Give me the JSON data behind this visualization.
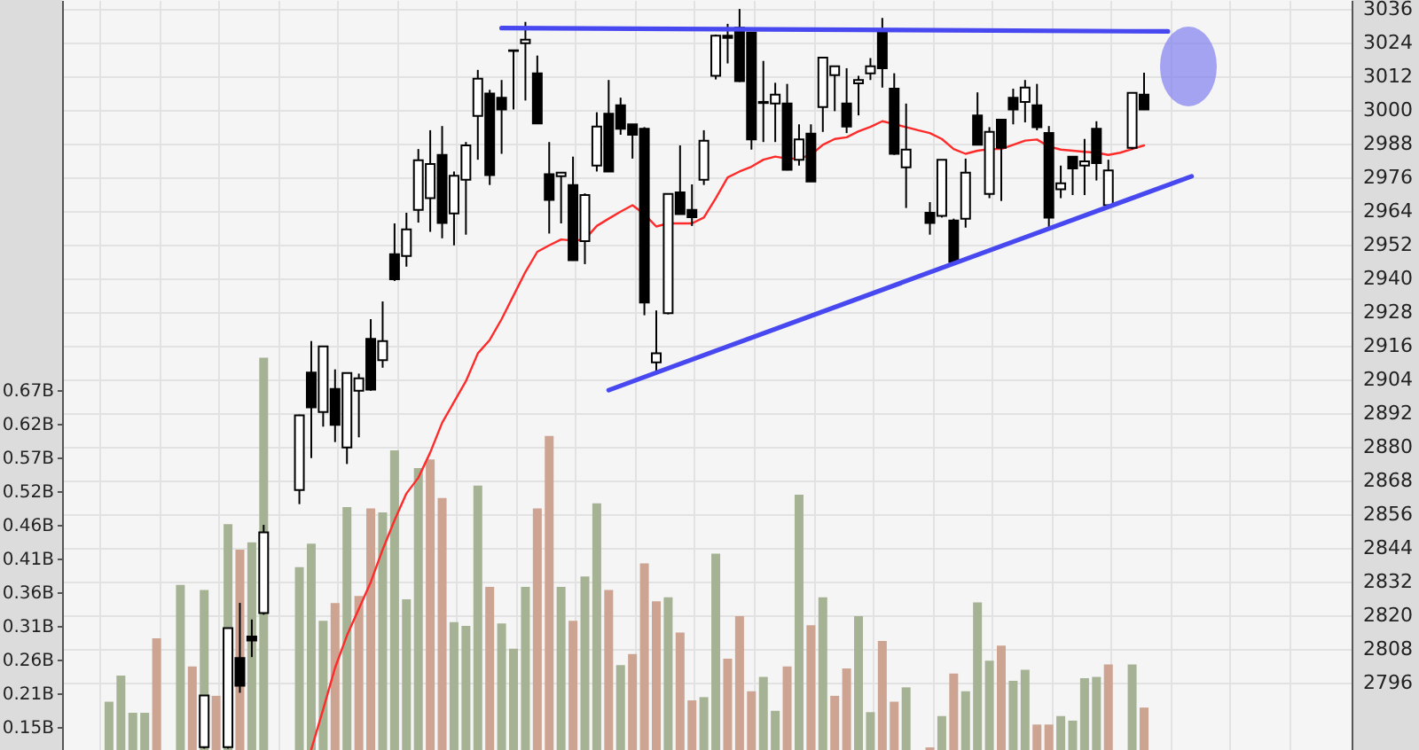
{
  "chart_data": {
    "type": "candlestick",
    "categories": [
      null,
      null,
      null,
      null,
      null,
      null,
      null,
      null,
      null,
      null,
      null,
      null,
      null,
      null,
      null,
      null,
      null,
      null,
      null,
      null,
      null,
      null,
      null,
      null,
      null,
      null,
      null,
      null,
      null,
      null,
      null,
      null,
      null,
      null,
      null,
      null,
      null,
      null,
      null,
      null,
      null,
      null,
      null,
      null,
      null,
      null,
      null,
      null,
      null,
      null,
      null,
      null,
      null,
      null,
      null,
      null,
      null,
      null,
      null,
      null,
      null,
      null,
      null,
      null,
      null,
      null,
      null,
      null,
      null,
      null,
      null,
      null,
      null,
      null,
      null,
      null,
      null,
      null,
      null,
      null,
      null,
      null,
      null,
      null,
      null,
      null,
      null,
      null,
      null,
      null,
      null,
      null
    ],
    "ohlc": [
      null,
      null,
      null,
      null,
      null,
      null,
      null,
      null,
      [
        2773,
        2791.4,
        2772.5,
        2791.4
      ],
      null,
      [
        2773,
        2815.4,
        2772.5,
        2815.4
      ],
      [
        2804.8,
        2824.4,
        2792.4,
        2794.9
      ],
      [
        2812.4,
        2818.5,
        2805.1,
        2811.0
      ],
      [
        2820.8,
        2852.2,
        2820.2,
        2849.5
      ],
      null,
      null,
      [
        2864.6,
        2891.5,
        2859.6,
        2891.2
      ],
      [
        2906.5,
        2917.7,
        2876.0,
        2894.1
      ],
      [
        2892.4,
        2916.0,
        2887.2,
        2915.8
      ],
      [
        2900.6,
        2907.6,
        2881.7,
        2887.8
      ],
      [
        2879.8,
        2906.5,
        2873.9,
        2906.3
      ],
      [
        2900.0,
        2906.1,
        2883.4,
        2904.4
      ],
      [
        2918.5,
        2925.5,
        2900.0,
        2900.4
      ],
      [
        2910.9,
        2931.8,
        2908.2,
        2917.7
      ],
      [
        2948.6,
        2959.6,
        2939.1,
        2939.7
      ],
      [
        2948.0,
        2963.4,
        2944.2,
        2957.5
      ],
      [
        2964.4,
        2986.1,
        2959.9,
        2982.1
      ],
      [
        2968.6,
        2992.8,
        2956.6,
        2980.8
      ],
      [
        2984.0,
        2994.3,
        2954.3,
        2959.8
      ],
      [
        2963.2,
        2978.1,
        2951.8,
        2976.6
      ],
      [
        2975.2,
        2988.6,
        2955.6,
        2987.4
      ],
      [
        2997.9,
        3014.3,
        2982.3,
        3011.2
      ],
      [
        3005.9,
        3007.2,
        2973.3,
        2976.8
      ],
      [
        3004.4,
        3010.7,
        2984.4,
        3000.2
      ],
      [
        3021.3,
        3021.3,
        3000.2,
        3021.0
      ],
      [
        3023.8,
        3031.4,
        3003.4,
        3025.1
      ],
      [
        3013.1,
        3019.4,
        2995.0,
        2995.2
      ],
      [
        2977.1,
        2988.6,
        2956.0,
        2968.0
      ],
      [
        2976.4,
        2977.7,
        2959.6,
        2977.7
      ],
      [
        2973.3,
        2983.4,
        2946.3,
        2946.5
      ],
      [
        2953.3,
        2970.3,
        2945.1,
        2969.7
      ],
      [
        2980.2,
        2999.2,
        2978.1,
        2994.1
      ],
      [
        2998.7,
        3010.7,
        2978.0,
        2978.1
      ],
      [
        3001.7,
        3004.4,
        2991.2,
        2993.3
      ],
      [
        2994.9,
        2994.9,
        2982.7,
        2991.2
      ],
      [
        2993.3,
        2993.9,
        2926.9,
        2931.4
      ],
      [
        2910.1,
        2928.6,
        2906.9,
        2913.3
      ],
      [
        2927.6,
        2970.1,
        2927.2,
        2970.1
      ],
      [
        2970.7,
        2987.4,
        2962.9,
        2962.9
      ],
      [
        2964.4,
        2973.5,
        2958.7,
        2961.8
      ],
      [
        2975.2,
        2992.8,
        2973.3,
        2989.1
      ],
      [
        3012.2,
        3026.9,
        3010.9,
        3026.5
      ],
      [
        3026.5,
        3030.7,
        3016.6,
        3025.7
      ],
      [
        3029.3,
        3036.0,
        3010.0,
        3010.3
      ],
      [
        3027.6,
        3027.6,
        2985.9,
        2989.5
      ],
      [
        3002.9,
        3017.5,
        2988.6,
        3002.5
      ],
      [
        3002.3,
        3009.7,
        2988.6,
        3005.5
      ],
      [
        3002.3,
        3009.3,
        2978.5,
        2978.7
      ],
      [
        2982.3,
        2994.9,
        2980.2,
        2989.5
      ],
      [
        2991.6,
        2994.9,
        2974.5,
        2974.5
      ],
      [
        3001.1,
        3018.7,
        2992.2,
        3018.7
      ],
      [
        3012.4,
        3015.6,
        2999.6,
        3015.6
      ],
      [
        3002.3,
        3014.9,
        2991.8,
        2994.1
      ],
      [
        3009.5,
        3012.2,
        2998.1,
        3010.7
      ],
      [
        3013.1,
        3018.5,
        3010.7,
        3015.6
      ],
      [
        3027.6,
        3032.8,
        3008.0,
        3014.9
      ],
      [
        3007.6,
        3013.1,
        2984.0,
        2984.4
      ],
      [
        2979.6,
        3002.3,
        2965.1,
        2985.9
      ],
      null,
      [
        2963.4,
        2967.2,
        2955.6,
        2959.8
      ],
      [
        2962.3,
        2982.3,
        2961.7,
        2982.3
      ],
      [
        2960.6,
        2961.3,
        2945.5,
        2945.9
      ],
      [
        2961.3,
        2982.7,
        2958.1,
        2977.7
      ],
      [
        2998.1,
        3006.3,
        2987.5,
        2987.6
      ],
      [
        2970.1,
        2993.9,
        2968.6,
        2992.2
      ],
      [
        2996.6,
        2996.6,
        2967.6,
        2986.5
      ],
      [
        3004.4,
        3007.6,
        2994.9,
        3000.2
      ],
      [
        3002.9,
        3010.7,
        2995.6,
        3008.0
      ],
      [
        3001.7,
        3009.3,
        2992.8,
        2993.9
      ],
      [
        2991.8,
        2994.3,
        2958.1,
        2961.7
      ],
      [
        2971.8,
        2980.2,
        2968.6,
        2973.9
      ],
      [
        2983.4,
        2983.4,
        2969.7,
        2979.2
      ],
      [
        2980.2,
        2989.7,
        2969.7,
        2981.7
      ],
      [
        2993.3,
        2996.0,
        2974.9,
        2981.1
      ],
      [
        2966.1,
        2982.3,
        2966.0,
        2978.5
      ],
      null,
      [
        2986.5,
        3006.1,
        2986.0,
        3006.1
      ],
      [
        3005.5,
        3013.3,
        3000.0,
        3000.2
      ],
      null,
      null,
      null,
      null
    ],
    "ylim": [
      2772,
      3039.2
    ],
    "yticks": [
      2796,
      2808,
      2820,
      2832,
      2844,
      2856,
      2868,
      2880,
      2892,
      2904,
      2916,
      2928,
      2940,
      2952,
      2964,
      2976,
      2988,
      3000,
      3012,
      3024,
      3036
    ],
    "y2lim": [
      0.119,
      1.268
    ],
    "y2ticks": [
      {
        "value": 0.1545,
        "label": "0.15B"
      },
      {
        "value": 0.2061,
        "label": "0.21B"
      },
      {
        "value": 0.2577,
        "label": "0.26B"
      },
      {
        "value": 0.3093,
        "label": "0.31B"
      },
      {
        "value": 0.3609,
        "label": "0.36B"
      },
      {
        "value": 0.4125,
        "label": "0.41B"
      },
      {
        "value": 0.4641,
        "label": "0.46B"
      },
      {
        "value": 0.5157,
        "label": "0.52B"
      },
      {
        "value": 0.5673,
        "label": "0.57B"
      },
      {
        "value": 0.6189,
        "label": "0.62B"
      },
      {
        "value": 0.6705,
        "label": "0.67B"
      }
    ],
    "grid": true,
    "tick_labels": "y",
    "series": [
      {
        "type": "bar",
        "axis": "y2",
        "values": [
          0.193,
          0.233,
          0.176,
          0.176,
          0.29,
          null,
          0.372,
          0.247,
          0.364,
          0.202,
          0.465,
          0.426,
          0.437,
          0.72,
          null,
          null,
          0.399,
          0.435,
          0.317,
          0.344,
          0.491,
          0.355,
          0.489,
          0.483,
          0.578,
          0.35,
          0.551,
          0.564,
          0.505,
          0.315,
          0.309,
          0.524,
          0.369,
          0.313,
          0.274,
          0.369,
          0.489,
          0.6,
          0.369,
          0.317,
          0.385,
          0.497,
          0.364,
          0.249,
          0.266,
          0.405,
          0.347,
          0.353,
          0.299,
          0.195,
          0.2,
          0.42,
          0.259,
          0.324,
          0.209,
          0.231,
          0.179,
          0.247,
          0.51,
          0.31,
          0.353,
          0.202,
          0.244,
          0.324,
          0.177,
          0.286,
          0.193,
          0.215,
          null,
          0.123,
          0.171,
          0.236,
          0.209,
          0.345,
          0.256,
          0.279,
          0.225,
          0.242,
          0.158,
          0.158,
          0.171,
          0.164,
          0.229,
          0.231,
          0.25,
          null,
          0.25,
          0.184,
          null,
          null,
          null,
          null
        ],
        "colors": [
          "#a5b394",
          "#a5b394",
          "#a5b394",
          "#a5b394",
          "#cda391",
          null,
          "#a5b394",
          "#cda391",
          "#a5b394",
          "#cda391",
          "#a5b394",
          "#cda391",
          "#a5b394",
          "#a5b394",
          null,
          null,
          "#a5b394",
          "#a5b394",
          "#a5b394",
          "#cda391",
          "#a5b394",
          "#cda391",
          "#cda391",
          "#a5b394",
          "#a5b394",
          "#a5b394",
          "#a5b394",
          "#cda391",
          "#cda391",
          "#a5b394",
          "#a5b394",
          "#a5b394",
          "#cda391",
          "#a5b394",
          "#a5b394",
          "#a5b394",
          "#cda391",
          "#cda391",
          "#a5b394",
          "#cda391",
          "#a5b394",
          "#a5b394",
          "#cda391",
          "#a5b394",
          "#cda391",
          "#cda391",
          "#cda391",
          "#a5b394",
          "#cda391",
          "#cda391",
          "#a5b394",
          "#a5b394",
          "#cda391",
          "#cda391",
          "#cda391",
          "#a5b394",
          "#a5b394",
          "#cda391",
          "#a5b394",
          "#cda391",
          "#a5b394",
          "#cda391",
          "#cda391",
          "#a5b394",
          "#a5b394",
          "#cda391",
          "#cda391",
          "#a5b394",
          null,
          "#cda391",
          "#a5b394",
          "#cda391",
          "#a5b394",
          "#a5b394",
          "#a5b394",
          "#cda391",
          "#a5b394",
          "#a5b394",
          "#cda391",
          "#cda391",
          "#a5b394",
          "#a5b394",
          "#a5b394",
          "#a5b394",
          "#cda391",
          null,
          "#a5b394",
          "#cda391",
          null,
          null,
          null,
          null
        ]
      },
      {
        "type": "line",
        "color": "#ff2a2a",
        "values": [
          null,
          null,
          null,
          null,
          null,
          null,
          null,
          null,
          null,
          null,
          null,
          null,
          null,
          null,
          null,
          null,
          null,
          2772.2,
          2786.5,
          2801.3,
          2812.8,
          2822.3,
          2831.8,
          2843.4,
          2853.9,
          2863.4,
          2869,
          2878,
          2888.6,
          2896,
          2903.4,
          2913.3,
          2918.1,
          2925.5,
          2933.9,
          2942.3,
          2949.5,
          2951.8,
          2953.9,
          2953.5,
          2953.9,
          2958.7,
          2961.3,
          2963.8,
          2966.1,
          2962.9,
          2958.5,
          2959.6,
          2959.6,
          2959.6,
          2961.7,
          2968.6,
          2976,
          2978.1,
          2979.8,
          2982.3,
          2983.4,
          2982.7,
          2982.7,
          2984,
          2987.6,
          2989.7,
          2990.3,
          2992.4,
          2994,
          2996,
          2995,
          2993.9,
          2992.8,
          2991.8,
          2989.7,
          2986.1,
          2984.4,
          2985.5,
          2986.1,
          2986.1,
          2987.6,
          2989.1,
          2989.5,
          2987,
          2985.9,
          2985.5,
          2985.1,
          2984.8,
          2984,
          2984.8,
          2986.1,
          2987.4,
          null,
          null,
          null,
          null
        ]
      },
      {
        "type": "line",
        "color": "#4848f0",
        "values": [
          null,
          null,
          null,
          null,
          null,
          null,
          null,
          null,
          null,
          null,
          null,
          null,
          null,
          null,
          null,
          null,
          null,
          null,
          null,
          null,
          null,
          null,
          null,
          null,
          null,
          null,
          null,
          null,
          null,
          null,
          null,
          null,
          null,
          3029.2,
          null,
          null,
          null,
          null,
          null,
          null,
          null,
          null,
          null,
          null,
          null,
          null,
          null,
          null,
          null,
          null,
          null,
          null,
          null,
          null,
          null,
          null,
          null,
          null,
          null,
          null,
          null,
          null,
          null,
          null,
          null,
          null,
          null,
          null,
          null,
          null,
          null,
          null,
          null,
          null,
          null,
          null,
          null,
          null,
          null,
          null,
          null,
          null,
          null,
          null,
          null,
          null,
          null,
          null,
          null,
          3028.0,
          null,
          null
        ]
      },
      {
        "type": "line",
        "color": "#4848f0",
        "values": [
          null,
          null,
          null,
          null,
          null,
          null,
          null,
          null,
          null,
          null,
          null,
          null,
          null,
          null,
          null,
          null,
          null,
          null,
          null,
          null,
          null,
          null,
          null,
          null,
          null,
          null,
          null,
          null,
          null,
          null,
          null,
          null,
          null,
          null,
          null,
          null,
          null,
          null,
          null,
          null,
          null,
          null,
          2900.2,
          null,
          null,
          null,
          null,
          null,
          null,
          null,
          null,
          null,
          null,
          null,
          null,
          null,
          null,
          null,
          null,
          null,
          null,
          null,
          null,
          null,
          null,
          null,
          null,
          null,
          null,
          null,
          null,
          null,
          null,
          null,
          null,
          null,
          null,
          null,
          null,
          null,
          null,
          null,
          null,
          null,
          null,
          null,
          null,
          null,
          null,
          null,
          null,
          2976.4
        ]
      }
    ]
  }
}
